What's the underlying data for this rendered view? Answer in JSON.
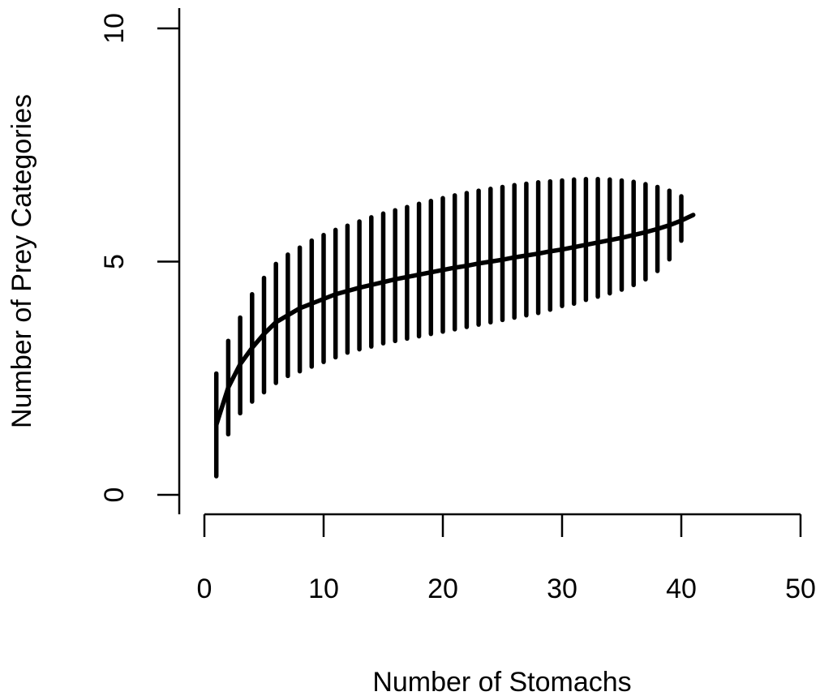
{
  "chart_data": {
    "type": "line",
    "title": "",
    "xlabel": "Number of Stomachs",
    "ylabel": "Number of Prey Categories",
    "xlim": [
      0,
      50
    ],
    "ylim": [
      0,
      10
    ],
    "xticks": [
      0,
      10,
      20,
      30,
      40,
      50
    ],
    "yticks": [
      0,
      5,
      10
    ],
    "xtick_labels": [
      "0",
      "10",
      "20",
      "30",
      "40",
      "50"
    ],
    "ytick_labels": [
      "0",
      "5",
      "10"
    ],
    "grid": false,
    "legend": "none",
    "color": "#000000",
    "series": [
      {
        "kind": "mean-curve",
        "x": [
          1,
          2,
          3,
          4,
          5,
          6,
          7,
          8,
          9,
          10,
          11,
          12,
          13,
          14,
          15,
          16,
          17,
          18,
          19,
          20,
          21,
          22,
          23,
          24,
          25,
          26,
          27,
          28,
          29,
          30,
          31,
          32,
          33,
          34,
          35,
          36,
          37,
          38,
          39,
          40,
          41
        ],
        "values": [
          1.5,
          2.3,
          2.8,
          3.15,
          3.45,
          3.7,
          3.85,
          4.0,
          4.1,
          4.2,
          4.3,
          4.37,
          4.44,
          4.5,
          4.56,
          4.62,
          4.67,
          4.72,
          4.77,
          4.82,
          4.87,
          4.91,
          4.96,
          5.0,
          5.04,
          5.09,
          5.13,
          5.17,
          5.22,
          5.26,
          5.31,
          5.36,
          5.41,
          5.46,
          5.51,
          5.57,
          5.63,
          5.7,
          5.78,
          5.88,
          6.0
        ]
      },
      {
        "kind": "error-bars",
        "x": [
          1,
          2,
          3,
          4,
          5,
          6,
          7,
          8,
          9,
          10,
          11,
          12,
          13,
          14,
          15,
          16,
          17,
          18,
          19,
          20,
          21,
          22,
          23,
          24,
          25,
          26,
          27,
          28,
          29,
          30,
          31,
          32,
          33,
          34,
          35,
          36,
          37,
          38,
          39,
          40
        ],
        "lower": [
          0.4,
          1.3,
          1.75,
          2.0,
          2.2,
          2.4,
          2.55,
          2.65,
          2.75,
          2.85,
          2.95,
          3.05,
          3.12,
          3.18,
          3.25,
          3.3,
          3.35,
          3.4,
          3.45,
          3.5,
          3.55,
          3.6,
          3.65,
          3.7,
          3.75,
          3.8,
          3.85,
          3.9,
          3.97,
          4.05,
          4.1,
          4.18,
          4.25,
          4.32,
          4.4,
          4.5,
          4.62,
          4.8,
          5.05,
          5.45
        ],
        "upper": [
          2.6,
          3.3,
          3.8,
          4.3,
          4.65,
          4.95,
          5.15,
          5.3,
          5.45,
          5.57,
          5.68,
          5.77,
          5.86,
          5.95,
          6.03,
          6.1,
          6.17,
          6.24,
          6.3,
          6.36,
          6.42,
          6.47,
          6.52,
          6.56,
          6.6,
          6.64,
          6.67,
          6.7,
          6.72,
          6.74,
          6.76,
          6.77,
          6.77,
          6.76,
          6.74,
          6.71,
          6.66,
          6.6,
          6.52,
          6.4
        ]
      }
    ]
  }
}
